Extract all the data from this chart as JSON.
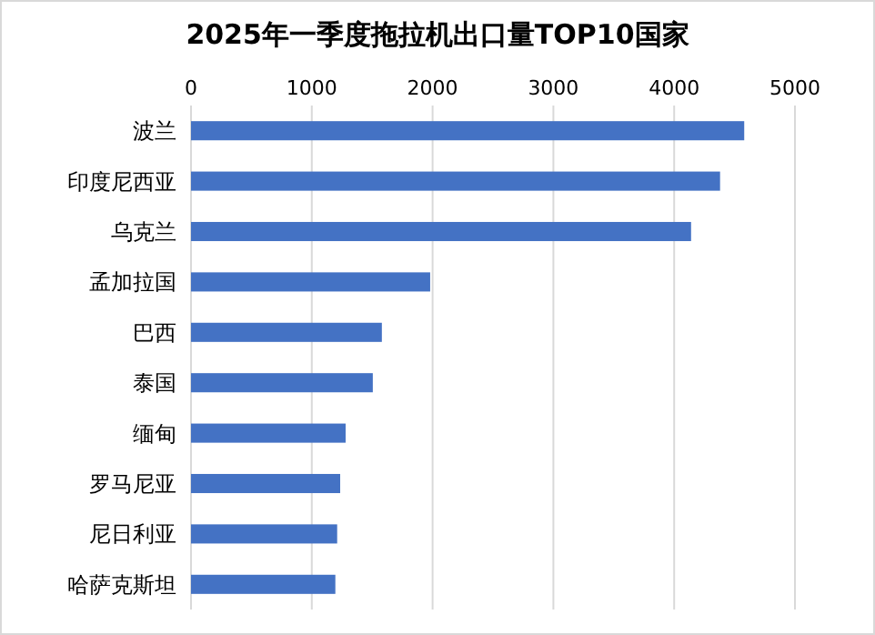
{
  "chart_data": {
    "type": "bar",
    "orientation": "horizontal",
    "title": "2025年一季度拖拉机出口量TOP10国家",
    "categories": [
      "波兰",
      "印度尼西亚",
      "乌克兰",
      "孟加拉国",
      "巴西",
      "泰国",
      "缅甸",
      "罗马尼亚",
      "尼日利亚",
      "哈萨克斯坦"
    ],
    "values": [
      4580,
      4380,
      4140,
      1980,
      1580,
      1505,
      1280,
      1235,
      1210,
      1195
    ],
    "color": "#4472c4",
    "xlim": [
      0,
      5000
    ],
    "xticks": [
      0,
      1000,
      2000,
      3000,
      4000,
      5000
    ],
    "grid": "x"
  }
}
